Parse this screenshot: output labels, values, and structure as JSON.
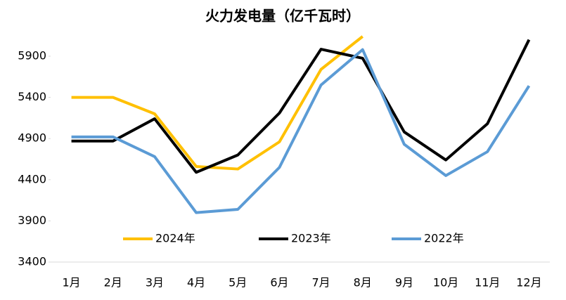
{
  "chart_data": {
    "type": "line",
    "title": "火力发电量（亿千瓦时）",
    "categories": [
      "1月",
      "2月",
      "3月",
      "4月",
      "5月",
      "6月",
      "7月",
      "8月",
      "9月",
      "10月",
      "11月",
      "12月"
    ],
    "series": [
      {
        "name": "2024年",
        "color": "#ffc000",
        "values": [
          5400,
          5400,
          5200,
          4560,
          4530,
          4860,
          5740,
          6140,
          null,
          null,
          null,
          null
        ]
      },
      {
        "name": "2023年",
        "color": "#000000",
        "values": [
          4870,
          4870,
          5140,
          4490,
          4700,
          5210,
          5985,
          5875,
          4980,
          4640,
          5080,
          6100
        ]
      },
      {
        "name": "2022年",
        "color": "#5b9bd5",
        "values": [
          4920,
          4920,
          4680,
          4000,
          4040,
          4550,
          5550,
          5980,
          4830,
          4450,
          4740,
          5540
        ]
      }
    ],
    "ylim": [
      3400,
      6400
    ],
    "yticks": [
      3400,
      3900,
      4400,
      4900,
      5400,
      5900
    ],
    "legend": "bottom-center"
  }
}
